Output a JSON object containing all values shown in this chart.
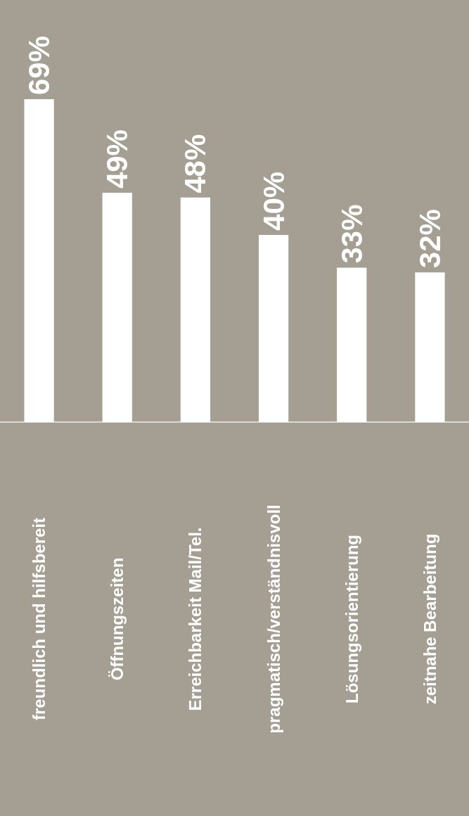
{
  "chart_data": {
    "type": "bar",
    "categories": [
      "freundlich und hilfsbereit",
      "Öffnungszeiten",
      "Erreichbarkeit Mail/Tel.",
      "pragmatisch/verständnisvoll",
      "Lösungsorientierung",
      "zeitnahe Bearbeitung"
    ],
    "values": [
      69,
      49,
      48,
      40,
      33,
      32
    ],
    "value_labels": [
      "69%",
      "49%",
      "48%",
      "40%",
      "33%",
      "32%"
    ],
    "color": "#ffffff",
    "tick_labels": "x"
  }
}
